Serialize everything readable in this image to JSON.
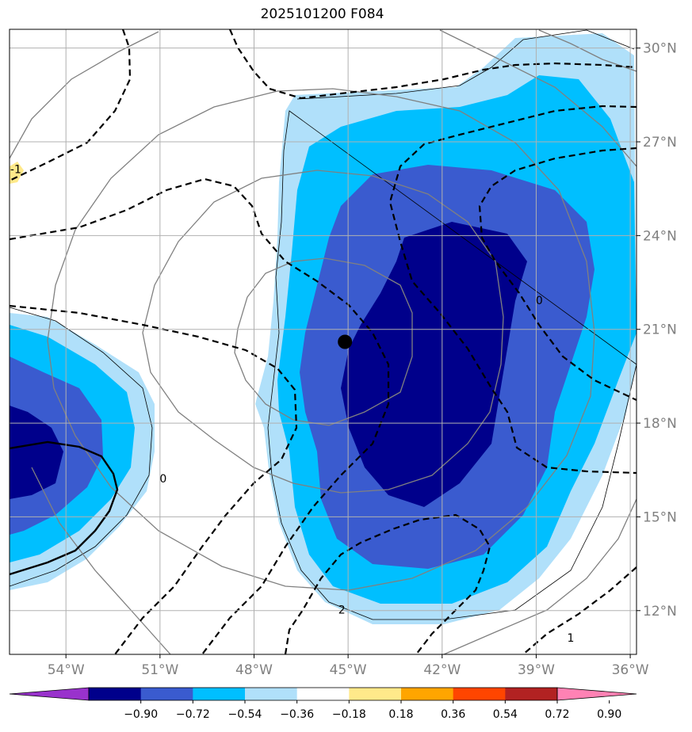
{
  "title": "2025101200 F084",
  "map": {
    "lon_range": [
      -55.8,
      -35.8
    ],
    "lat_range": [
      10.6,
      30.6
    ],
    "lon_ticks": [
      {
        "value": -54,
        "label": "54°W"
      },
      {
        "value": -51,
        "label": "51°W"
      },
      {
        "value": -48,
        "label": "48°W"
      },
      {
        "value": -45,
        "label": "45°W"
      },
      {
        "value": -42,
        "label": "42°W"
      },
      {
        "value": -39,
        "label": "39°W"
      },
      {
        "value": -36,
        "label": "36°W"
      }
    ],
    "lat_ticks": [
      {
        "value": 12,
        "label": "12°N"
      },
      {
        "value": 15,
        "label": "15°N"
      },
      {
        "value": 18,
        "label": "18°N"
      },
      {
        "value": 21,
        "label": "21°N"
      },
      {
        "value": 24,
        "label": "24°N"
      },
      {
        "value": 27,
        "label": "27°N"
      },
      {
        "value": 30,
        "label": "30°N"
      }
    ],
    "storm_center": {
      "lon": -45.1,
      "lat": 20.6
    },
    "contour_labels": [
      {
        "text": "2",
        "lon": -45.2,
        "lat": 11.9
      },
      {
        "text": "1",
        "lon": -37.9,
        "lat": 11.0
      },
      {
        "text": "0",
        "lon": -38.9,
        "lat": 21.8
      },
      {
        "text": "0",
        "lon": -50.9,
        "lat": 16.1
      },
      {
        "text": "-1",
        "lon": -55.6,
        "lat": 26.0
      }
    ]
  },
  "colorbar": {
    "colors": [
      "#9932cc",
      "#00008b",
      "#3a5bcf",
      "#00bfff",
      "#b0e0fa",
      "#ffffff",
      "#ffe98a",
      "#ffa500",
      "#ff4500",
      "#b22222",
      "#ff82b4"
    ],
    "tick_labels": [
      "−0.90",
      "−0.72",
      "−0.54",
      "−0.36",
      "−0.18",
      "0.18",
      "0.36",
      "0.54",
      "0.72",
      "0.90"
    ]
  }
}
